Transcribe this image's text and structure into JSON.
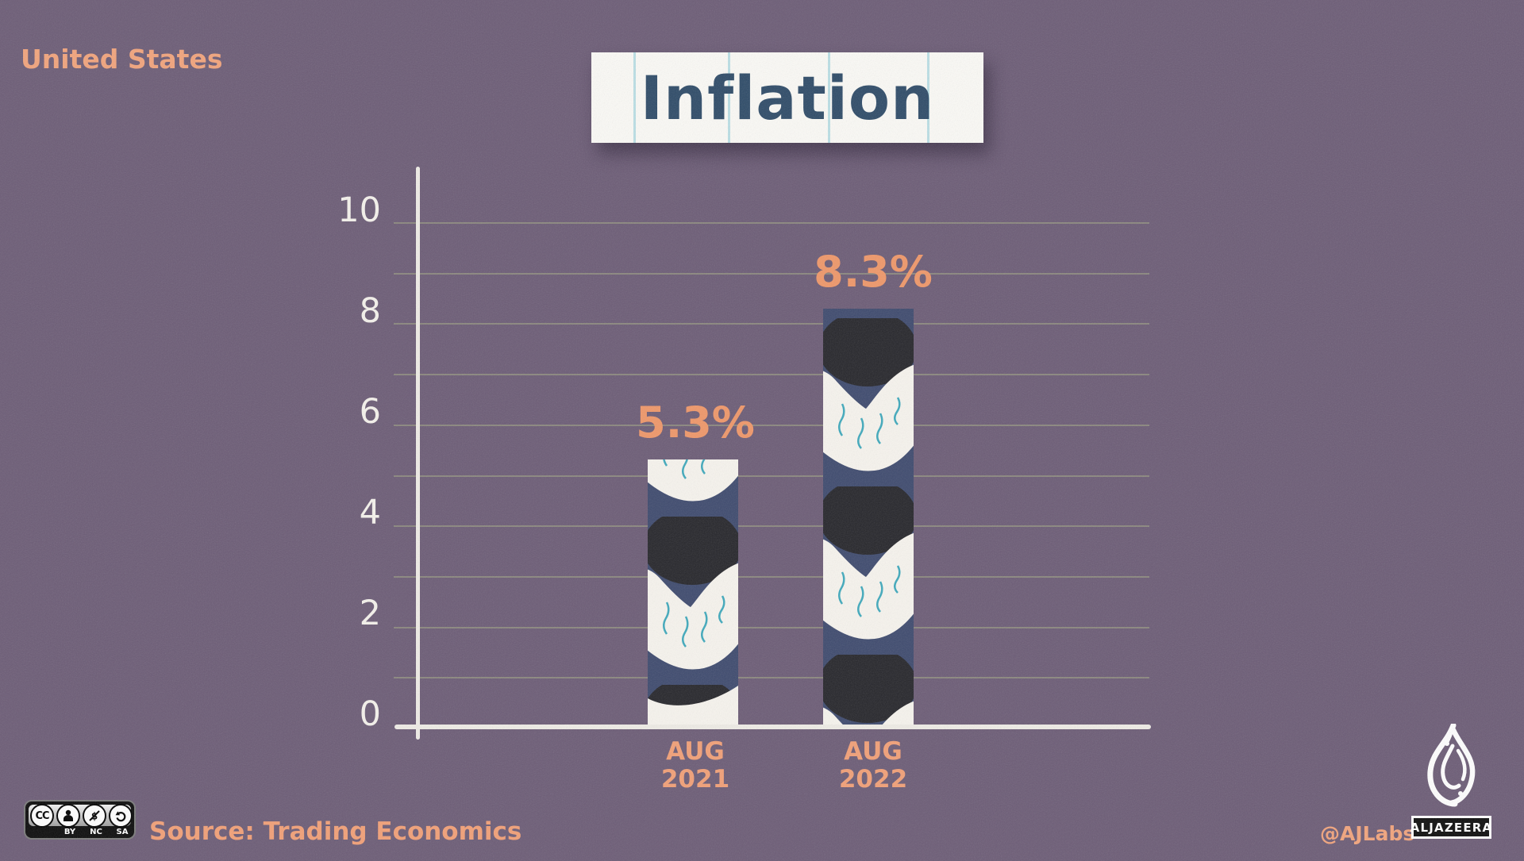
{
  "header": {
    "region_label": "United States",
    "title": "Inflation"
  },
  "chart_data": {
    "type": "bar",
    "title": "Inflation",
    "region": "United States",
    "categories": [
      "AUG 2021",
      "AUG 2022"
    ],
    "values": [
      5.3,
      8.3
    ],
    "value_labels": [
      "5.3%",
      "8.3%"
    ],
    "xlabel": "",
    "ylabel": "",
    "ylim": [
      0,
      10
    ],
    "yticks": [
      0,
      2,
      4,
      6,
      8,
      10
    ],
    "grid": "horizontal gridline at every 1 unit, faint olive lines",
    "legend_position": "none",
    "bar_style": "navy bars illustrated with white twisted ribbon and black blobs, teal squiggles"
  },
  "footer": {
    "source": "Source: Trading Economics",
    "credit_handle": "@AJLabs",
    "brand_wordmark": "ALJAZEERA",
    "license_badge": {
      "cc_label": "CC",
      "parts": [
        "BY",
        "NC",
        "SA"
      ]
    }
  },
  "colors": {
    "background": "#6C5C76",
    "accent_orange": "#F2A077",
    "value_label_orange": "#EF9769",
    "title_navy": "#2E4B68",
    "bar_navy": "#3E4A6E",
    "blob_black": "#26262B",
    "ribbon_white": "#F7F4EE",
    "squiggle_teal": "#3FA9BC",
    "axis_white": "#EFECE6",
    "gridline_olive": "#9AA17F",
    "title_box_bg": "#FBFAF6",
    "ruled_line_blue": "#AFD9E2"
  }
}
